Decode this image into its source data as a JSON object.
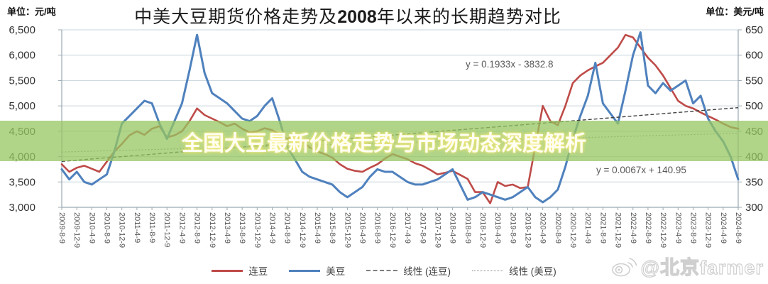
{
  "units": {
    "left": "单位：元/吨",
    "right": "单位：美元/吨"
  },
  "title": {
    "part1": "中美大豆期货价格走势及",
    "year": "2008",
    "part2": "年以来的长期趋势对比"
  },
  "banner": {
    "text": "全国大豆最新价格走势与市场动态深度解析",
    "bg_color": "#96C560",
    "text_color": "#FFFEF2"
  },
  "watermark": {
    "icon": "weibo-icon",
    "text": "@北京farmer"
  },
  "chart_data": {
    "type": "line",
    "title": "中美大豆期货价格走势及2008年以来的长期趋势对比",
    "grid": true,
    "legend_position": "bottom",
    "x_labels": [
      "2009-8-9",
      "2009-12-9",
      "2010-4-9",
      "2010-8-9",
      "2010-12-9",
      "2011-4-9",
      "2011-8-9",
      "2011-12-9",
      "2012-4-9",
      "2012-8-9",
      "2012-12-9",
      "2013-4-9",
      "2013-8-9",
      "2013-12-9",
      "2014-4-9",
      "2014-8-9",
      "2014-12-9",
      "2015-4-9",
      "2015-8-9",
      "2015-12-9",
      "2016-4-9",
      "2016-8-9",
      "2016-12-9",
      "2017-4-9",
      "2017-8-9",
      "2017-12-9",
      "2018-4-9",
      "2018-8-9",
      "2018-12-9",
      "2019-4-9",
      "2019-8-9",
      "2019-12-9",
      "2020-4-9",
      "2020-8-9",
      "2020-12-9",
      "2021-4-9",
      "2021-8-9",
      "2021-12-9",
      "2022-4-9",
      "2022-8-9",
      "2022-12-9",
      "2023-4-9",
      "2023-8-9",
      "2023-12-9",
      "2024-4-9",
      "2024-8-9"
    ],
    "points_per_label_interval": 2,
    "y_left": {
      "unit": "元/吨",
      "min": 3000,
      "max": 6500,
      "step": 500,
      "tick_labels": [
        "3,000",
        "3,500",
        "4,000",
        "4,500",
        "5,000",
        "5,500",
        "6,000",
        "6,500"
      ]
    },
    "y_right": {
      "unit": "美元/吨",
      "min": 300,
      "max": 650,
      "step": 50,
      "tick_labels": [
        "300",
        "350",
        "400",
        "450",
        "500",
        "550",
        "600",
        "650"
      ]
    },
    "series": [
      {
        "name": "连豆",
        "axis": "left",
        "color": "#BE4B48",
        "values": [
          3850,
          3700,
          3780,
          3820,
          3760,
          3700,
          3900,
          4100,
          4250,
          4420,
          4500,
          4430,
          4550,
          4600,
          4380,
          4420,
          4500,
          4700,
          4950,
          4820,
          4750,
          4680,
          4600,
          4650,
          4550,
          4480,
          4500,
          4560,
          4520,
          4440,
          4350,
          4420,
          4300,
          4180,
          4100,
          4050,
          3980,
          3850,
          3760,
          3720,
          3700,
          3780,
          3850,
          3960,
          4050,
          4000,
          3950,
          3870,
          3820,
          3740,
          3650,
          3680,
          3720,
          3640,
          3560,
          3300,
          3300,
          3080,
          3500,
          3420,
          3450,
          3380,
          3400,
          4200,
          5000,
          4700,
          4620,
          5000,
          5450,
          5600,
          5700,
          5780,
          5850,
          6000,
          6150,
          6400,
          6350,
          6150,
          5950,
          5800,
          5600,
          5350,
          5100,
          5000,
          4950,
          4870,
          4800,
          4730,
          4650,
          4580,
          4550
        ]
      },
      {
        "name": "美豆",
        "axis": "right",
        "color": "#4F81BD",
        "values": [
          375,
          355,
          370,
          350,
          345,
          355,
          365,
          410,
          465,
          480,
          495,
          510,
          505,
          465,
          435,
          470,
          505,
          570,
          640,
          565,
          525,
          515,
          505,
          490,
          475,
          470,
          480,
          500,
          515,
          470,
          420,
          395,
          370,
          360,
          355,
          350,
          345,
          330,
          320,
          330,
          340,
          360,
          375,
          370,
          370,
          360,
          350,
          345,
          345,
          350,
          355,
          365,
          375,
          345,
          315,
          320,
          330,
          325,
          320,
          315,
          320,
          330,
          340,
          320,
          310,
          320,
          335,
          380,
          435,
          480,
          520,
          585,
          505,
          485,
          465,
          530,
          600,
          645,
          540,
          525,
          545,
          530,
          540,
          550,
          505,
          520,
          475,
          450,
          430,
          400,
          355
        ]
      }
    ],
    "trendlines": [
      {
        "name": "线性 (连豆)",
        "axis": "left",
        "start_value": 3906,
        "end_value": 4965,
        "equation": "y = 0.1933x - 3832.8",
        "color": "#3f3f3f",
        "style": "dashed"
      },
      {
        "name": "线性 (美豆)",
        "axis": "right",
        "start_value": 409,
        "end_value": 446,
        "equation": "y = 0.0067x + 140.95",
        "color": "#8c8c8c",
        "style": "dotted"
      }
    ]
  }
}
